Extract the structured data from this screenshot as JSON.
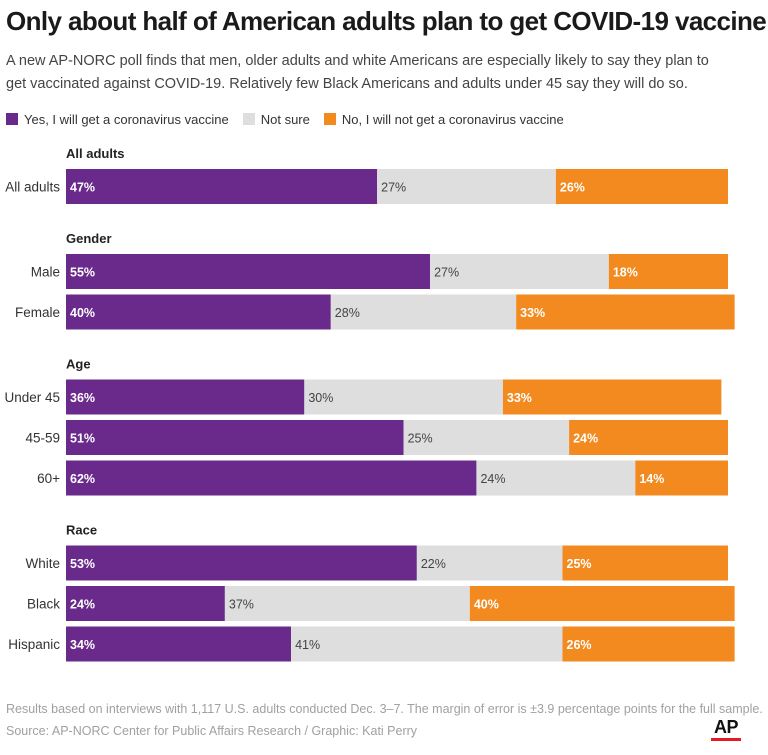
{
  "title": "Only about half of American adults plan to get COVID-19 vaccine",
  "subtitle": "A new AP-NORC poll finds that men, older adults and white Americans are especially likely to say they plan to get vaccinated against COVID-19. Relatively few Black Americans and adults under 45 say they will do so.",
  "legend": [
    {
      "label": "Yes, I will get a coronavirus vaccine",
      "color": "#6a2a8c"
    },
    {
      "label": "Not sure",
      "color": "#dedede"
    },
    {
      "label": "No, I will not get a coronavirus vaccine",
      "color": "#f28a1f"
    }
  ],
  "chart_data": {
    "type": "bar",
    "stacked": true,
    "orientation": "horizontal",
    "series_names": [
      "Yes, I will get a coronavirus vaccine",
      "Not sure",
      "No, I will not get a coronavirus vaccine"
    ],
    "colors": [
      "#6a2a8c",
      "#dedede",
      "#f28a1f"
    ],
    "groups": [
      {
        "name": "All adults",
        "rows": [
          {
            "label": "All adults",
            "values": [
              47,
              27,
              26
            ]
          }
        ]
      },
      {
        "name": "Gender",
        "rows": [
          {
            "label": "Male",
            "values": [
              55,
              27,
              18
            ]
          },
          {
            "label": "Female",
            "values": [
              40,
              28,
              33
            ]
          }
        ]
      },
      {
        "name": "Age",
        "rows": [
          {
            "label": "Under 45",
            "values": [
              36,
              30,
              33
            ]
          },
          {
            "label": "45-59",
            "values": [
              51,
              25,
              24
            ]
          },
          {
            "label": "60+",
            "values": [
              62,
              24,
              14
            ]
          }
        ]
      },
      {
        "name": "Race",
        "rows": [
          {
            "label": "White",
            "values": [
              53,
              22,
              25
            ]
          },
          {
            "label": "Black",
            "values": [
              24,
              37,
              40
            ]
          },
          {
            "label": "Hispanic",
            "values": [
              34,
              41,
              26
            ]
          }
        ]
      }
    ]
  },
  "footnote": "Results based on interviews with 1,117 U.S. adults conducted Dec. 3–7. The margin of error is ±3.9 percentage points for the full sample.",
  "source": "Source: AP-NORC Center for Public Affairs Research / Graphic: Kati Perry",
  "logo": "AP"
}
